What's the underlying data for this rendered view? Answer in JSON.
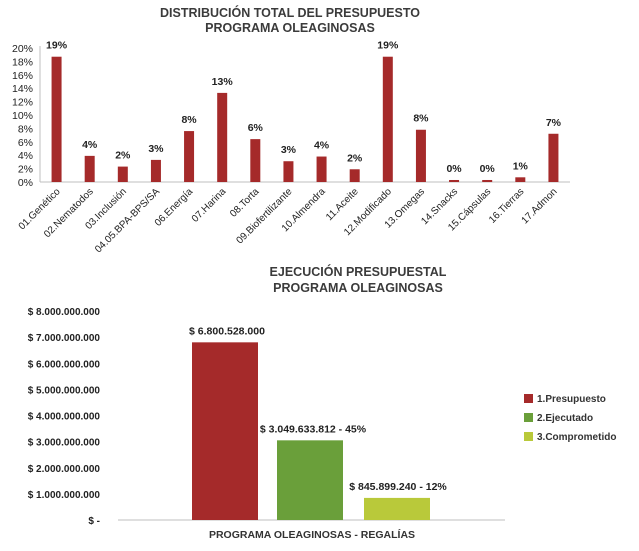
{
  "chart_data": [
    {
      "type": "bar",
      "title_line1": "DISTRIBUCIÓN TOTAL DEL PRESUPUESTO",
      "title_line2": "PROGRAMA OLEAGINOSAS",
      "categories": [
        "01.Genético",
        "02.Nematodos",
        "03.Inclusión",
        "04.05.BPA-BPS/SA",
        "06.Energía",
        "07.Harina",
        "08.Torta",
        "09.Biofertilizante",
        "10.Almendra",
        "11.Aceite",
        "12.Modificado",
        "13.Omegas",
        "14.Snacks",
        "15.Cápsulas",
        "16.Tierras",
        "17.Admon"
      ],
      "values": [
        19,
        4,
        2,
        3,
        8,
        13,
        6,
        3,
        4,
        2,
        19,
        8,
        0,
        0,
        1,
        7
      ],
      "heights": [
        18.7,
        3.9,
        2.3,
        3.3,
        7.6,
        13.3,
        6.4,
        3.1,
        3.8,
        1.9,
        18.7,
        7.8,
        0.3,
        0.3,
        0.7,
        7.2
      ],
      "value_labels": [
        "19%",
        "4%",
        "2%",
        "3%",
        "8%",
        "13%",
        "6%",
        "3%",
        "4%",
        "2%",
        "19%",
        "8%",
        "0%",
        "0%",
        "1%",
        "7%"
      ],
      "yticks": [
        "0%",
        "2%",
        "4%",
        "6%",
        "8%",
        "10%",
        "12%",
        "14%",
        "16%",
        "18%",
        "20%"
      ],
      "ylim": [
        0,
        20
      ],
      "color": "#a52a2a",
      "grid": false
    },
    {
      "type": "bar",
      "title_line1": "EJECUCIÓN PRESUPUESTAL",
      "title_line2": "PROGRAMA OLEAGINOSAS",
      "xcategory": "PROGRAMA OLEAGINOSAS - REGALÍAS",
      "series": [
        {
          "name": "1.Presupuesto",
          "value": 6800528000,
          "label": "$ 6.800.528.000",
          "color": "#a52a2a"
        },
        {
          "name": "2.Ejecutado",
          "value": 3049633812,
          "label": "$ 3.049.633.812 - 45%",
          "color": "#6a9f3a"
        },
        {
          "name": "3.Comprometido",
          "value": 845899240,
          "label": "$ 845.899.240 - 12%",
          "color": "#b9c93a"
        }
      ],
      "yticks": [
        "$ -",
        "$ 1.000.000.000",
        "$ 2.000.000.000",
        "$ 3.000.000.000",
        "$ 4.000.000.000",
        "$ 5.000.000.000",
        "$ 6.000.000.000",
        "$ 7.000.000.000",
        "$ 8.000.000.000"
      ],
      "ylim": [
        0,
        8000000000
      ],
      "legend_position": "right",
      "grid": false
    }
  ]
}
